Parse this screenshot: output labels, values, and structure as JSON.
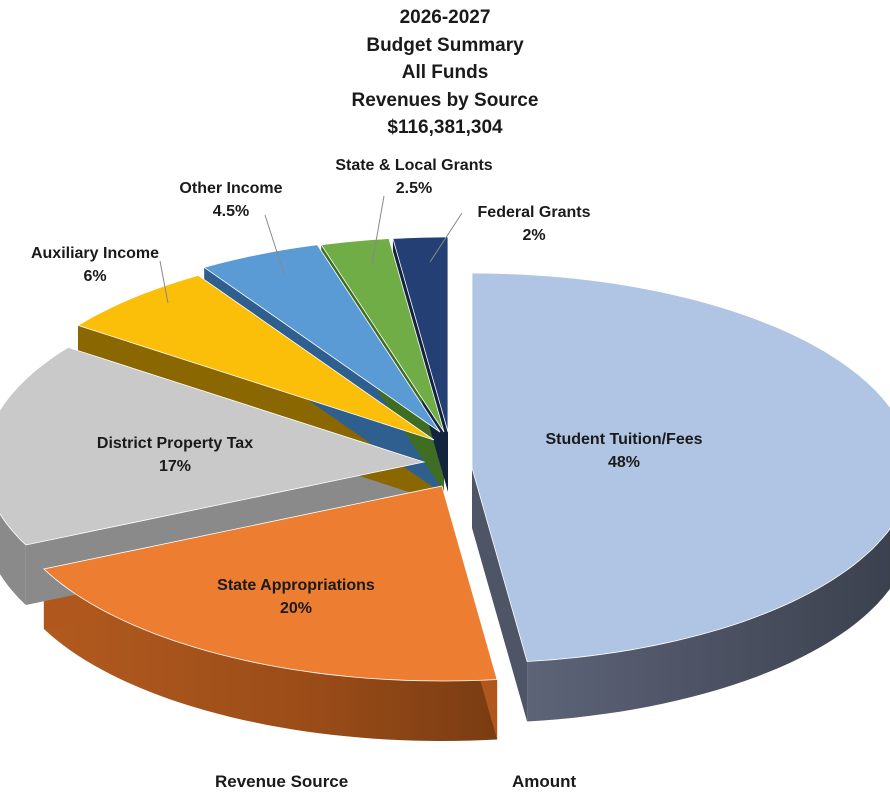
{
  "title": {
    "line1": "2026-2027",
    "line2": "Budget Summary",
    "line3": "All Funds",
    "line4": "Revenues by Source",
    "line5": "$116,381,304"
  },
  "chart_data": {
    "type": "pie",
    "style": "3d-exploded",
    "title": "2026-2027 Budget Summary All Funds Revenues by Source $116,381,304",
    "slices": [
      {
        "name": "Student Tuition/Fees",
        "value": 48,
        "label": "48%",
        "color": "#b0c4e3",
        "side_color": "#4e5566"
      },
      {
        "name": "State Appropriations",
        "value": 20,
        "label": "20%",
        "color": "#ec7d31",
        "side_color": "#b0571d"
      },
      {
        "name": "District Property Tax",
        "value": 17,
        "label": "17%",
        "color": "#c9c9c9",
        "side_color": "#8a8a8a"
      },
      {
        "name": "Auxiliary Income",
        "value": 6,
        "label": "6%",
        "color": "#fbbf0a",
        "side_color": "#8a6700"
      },
      {
        "name": "Other Income",
        "value": 4.5,
        "label": "4.5%",
        "color": "#5b9bd5",
        "side_color": "#2e5f8f"
      },
      {
        "name": "State & Local Grants",
        "value": 2.5,
        "label": "2.5%",
        "color": "#70ad47",
        "side_color": "#3f6d24"
      },
      {
        "name": "Federal Grants",
        "value": 2,
        "label": "2%",
        "color": "#243f73",
        "side_color": "#14243f"
      }
    ]
  },
  "table_header": {
    "col1": "Revenue Source",
    "col2": "Amount"
  }
}
